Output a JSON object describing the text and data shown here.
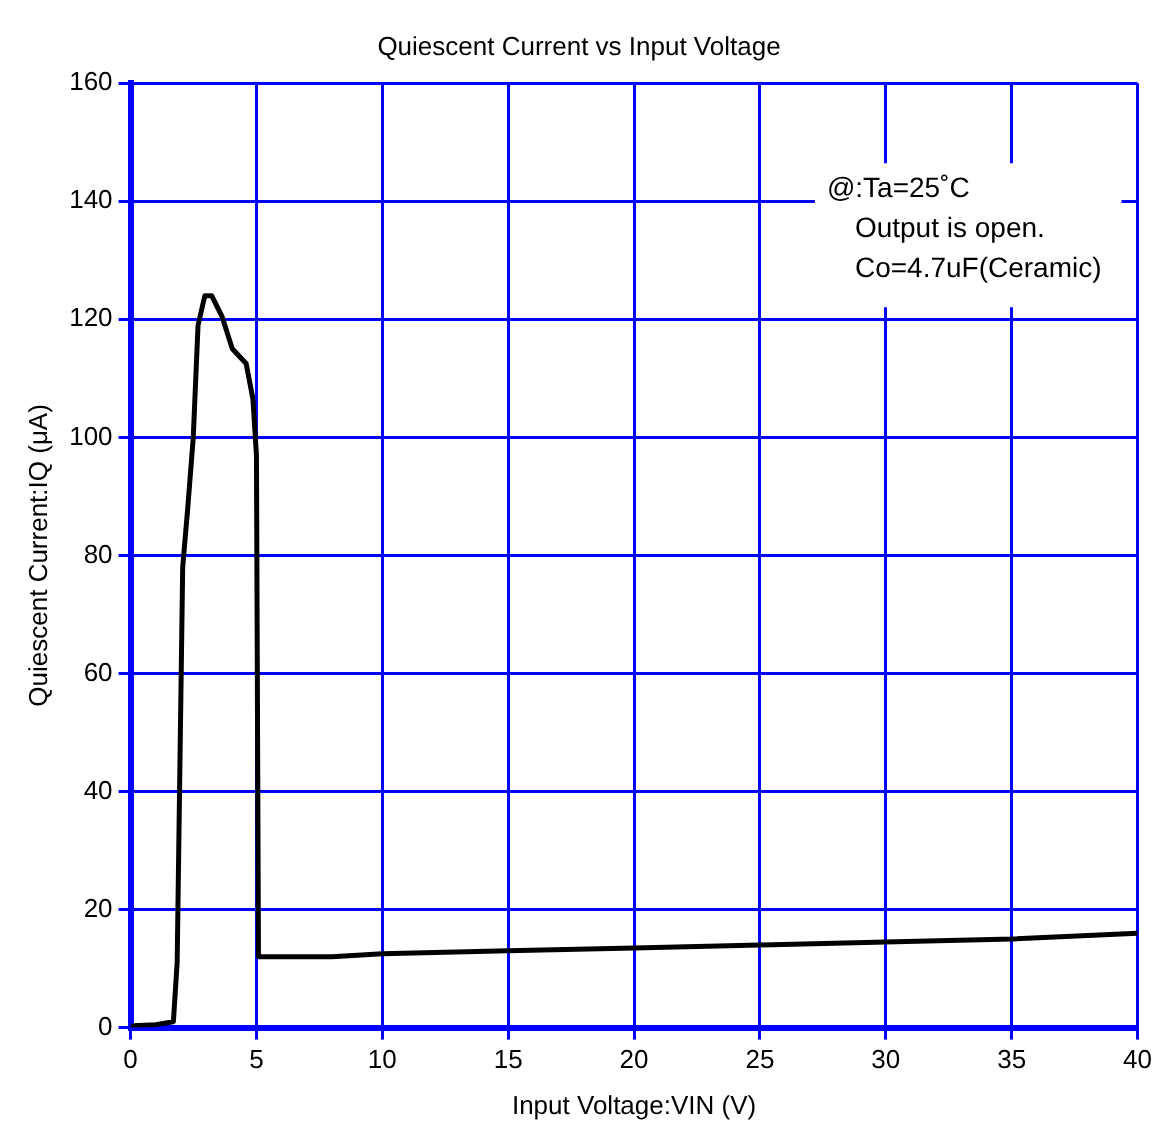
{
  "chart_data": {
    "type": "line",
    "title": "Quiescent Current vs Input Voltage",
    "xlabel": "Input Voltage:VIN (V)",
    "ylabel": "Quiescent Current:IQ (μA)",
    "annotations": [
      "@:Ta=25˚C",
      "Output is open.",
      "Co=4.7uF(Ceramic)"
    ],
    "series": [
      {
        "color": "#000000",
        "x": [
          0,
          0.1,
          1,
          1.7,
          1.85,
          2.07,
          2.27,
          2.49,
          2.68,
          2.95,
          3.22,
          3.63,
          4.04,
          4.59,
          4.86,
          5.0,
          5.08,
          6,
          8,
          10,
          15,
          20,
          25,
          30,
          35,
          40
        ],
        "values": [
          0,
          0.3,
          0.5,
          1,
          11,
          78,
          88,
          100,
          119,
          124,
          124,
          120.5,
          115,
          112.5,
          106.5,
          97,
          12,
          12,
          12,
          12.5,
          13,
          13.5,
          14,
          14.5,
          15,
          16
        ]
      }
    ],
    "xlim": [
      0,
      40
    ],
    "xticks": [
      0,
      5,
      10,
      15,
      20,
      25,
      30,
      35,
      40
    ],
    "ylim": [
      0,
      160
    ],
    "yticks": [
      0,
      20,
      40,
      60,
      80,
      100,
      120,
      140,
      160
    ],
    "grid": true,
    "legend": false,
    "marker": "none",
    "line_style": "solid"
  }
}
